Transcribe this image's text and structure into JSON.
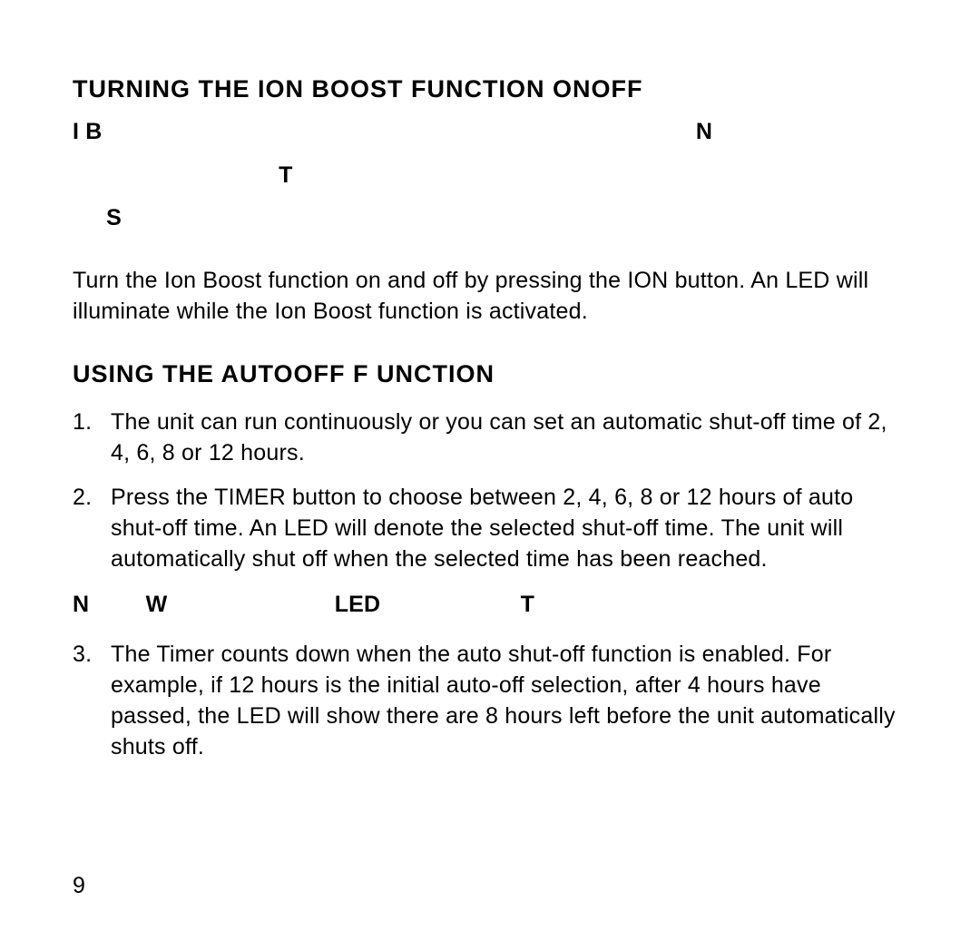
{
  "colors": {
    "background": "#ffffff",
    "text": "#000000"
  },
  "typography": {
    "base_font_family": "Helvetica Neue, Helvetica, Arial, sans-serif",
    "base_fontsize_pt": 19,
    "heading_fontsize_pt": 20,
    "heading_letter_spacing": "1px",
    "line_height": 1.35
  },
  "page_number": "9",
  "section1": {
    "heading": "TURNING THE ION BOOST FUNCTION ONOFF",
    "sparse_line1_left": "I B",
    "sparse_line1_right": "N",
    "sparse_line2_mid": "T",
    "sparse_line3_left": "S",
    "paragraph": "Turn the Ion Boost function on and off by pressing the ION button. An LED will illuminate while the Ion Boost function is activated."
  },
  "section2": {
    "heading": "USING THE AUTOOFF F UNCTION",
    "steps": [
      "The unit can run continuously or you can set an automatic shut-off time of 2, 4, 6, 8 or 12 hours.",
      "Press the TIMER button to choose between 2, 4, 6, 8 or 12 hours of auto shut-off time. An LED will denote the selected shut-off time. The unit will automatically shut off when the selected time has been reached.",
      "The Timer counts down when the auto shut-off function is enabled. For example, if 12 hours is the initial auto-off selection, after 4 hours have passed, the LED will show there are 8 hours left before the unit automatically shuts off."
    ],
    "note_letters": {
      "a": "N",
      "b": "W",
      "c": "LED",
      "d": "T"
    }
  }
}
